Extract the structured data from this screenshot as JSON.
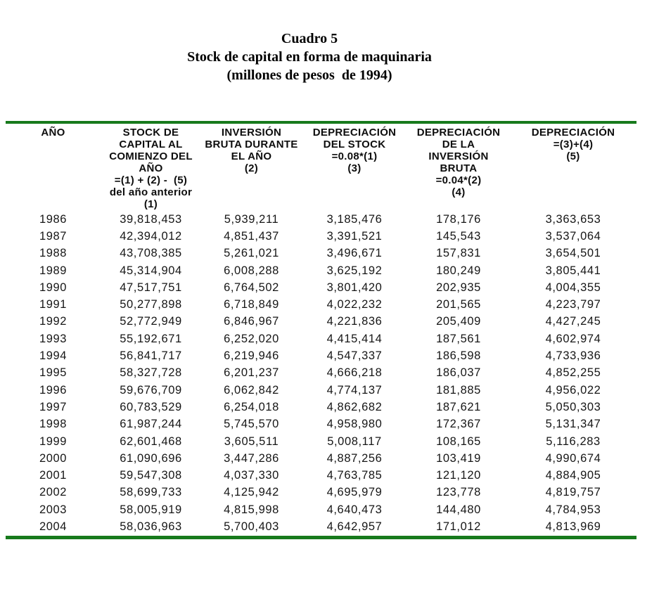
{
  "title": {
    "line1": "Cuadro 5",
    "line2": "Stock de capital en forma de maquinaria",
    "line3": "(millones de pesos  de 1994)"
  },
  "colors": {
    "rule_green": "#177a1c",
    "text_black": "#111111"
  },
  "table": {
    "headers": [
      [
        "AÑO"
      ],
      [
        "STOCK DE",
        "CAPITAL AL",
        "COMIENZO DEL",
        "AÑO",
        "=(1) + (2) -  (5)",
        "del año anterior",
        "(1)"
      ],
      [
        "INVERSIÓN",
        "BRUTA DURANTE",
        "EL AÑO",
        "(2)"
      ],
      [
        "DEPRECIACIÓN",
        "DEL STOCK",
        "=0.08*(1)",
        "(3)"
      ],
      [
        "DEPRECIACIÓN",
        "DE LA",
        "INVERSIÓN",
        "BRUTA",
        "=0.04*(2)",
        "(4)"
      ],
      [
        "DEPRECIACIÓN",
        "=(3)+(4)",
        "(5)"
      ]
    ],
    "rows": [
      [
        "1986",
        "39,818,453",
        "5,939,211",
        "3,185,476",
        "178,176",
        "3,363,653"
      ],
      [
        "1987",
        "42,394,012",
        "4,851,437",
        "3,391,521",
        "145,543",
        "3,537,064"
      ],
      [
        "1988",
        "43,708,385",
        "5,261,021",
        "3,496,671",
        "157,831",
        "3,654,501"
      ],
      [
        "1989",
        "45,314,904",
        "6,008,288",
        "3,625,192",
        "180,249",
        "3,805,441"
      ],
      [
        "1990",
        "47,517,751",
        "6,764,502",
        "3,801,420",
        "202,935",
        "4,004,355"
      ],
      [
        "1991",
        "50,277,898",
        "6,718,849",
        "4,022,232",
        "201,565",
        "4,223,797"
      ],
      [
        "1992",
        "52,772,949",
        "6,846,967",
        "4,221,836",
        "205,409",
        "4,427,245"
      ],
      [
        "1993",
        "55,192,671",
        "6,252,020",
        "4,415,414",
        "187,561",
        "4,602,974"
      ],
      [
        "1994",
        "56,841,717",
        "6,219,946",
        "4,547,337",
        "186,598",
        "4,733,936"
      ],
      [
        "1995",
        "58,327,728",
        "6,201,237",
        "4,666,218",
        "186,037",
        "4,852,255"
      ],
      [
        "1996",
        "59,676,709",
        "6,062,842",
        "4,774,137",
        "181,885",
        "4,956,022"
      ],
      [
        "1997",
        "60,783,529",
        "6,254,018",
        "4,862,682",
        "187,621",
        "5,050,303"
      ],
      [
        "1998",
        "61,987,244",
        "5,745,570",
        "4,958,980",
        "172,367",
        "5,131,347"
      ],
      [
        "1999",
        "62,601,468",
        "3,605,511",
        "5,008,117",
        "108,165",
        "5,116,283"
      ],
      [
        "2000",
        "61,090,696",
        "3,447,286",
        "4,887,256",
        "103,419",
        "4,990,674"
      ],
      [
        "2001",
        "59,547,308",
        "4,037,330",
        "4,763,785",
        "121,120",
        "4,884,905"
      ],
      [
        "2002",
        "58,699,733",
        "4,125,942",
        "4,695,979",
        "123,778",
        "4,819,757"
      ],
      [
        "2003",
        "58,005,919",
        "4,815,998",
        "4,640,473",
        "144,480",
        "4,784,953"
      ],
      [
        "2004",
        "58,036,963",
        "5,700,403",
        "4,642,957",
        "171,012",
        "4,813,969"
      ]
    ]
  }
}
